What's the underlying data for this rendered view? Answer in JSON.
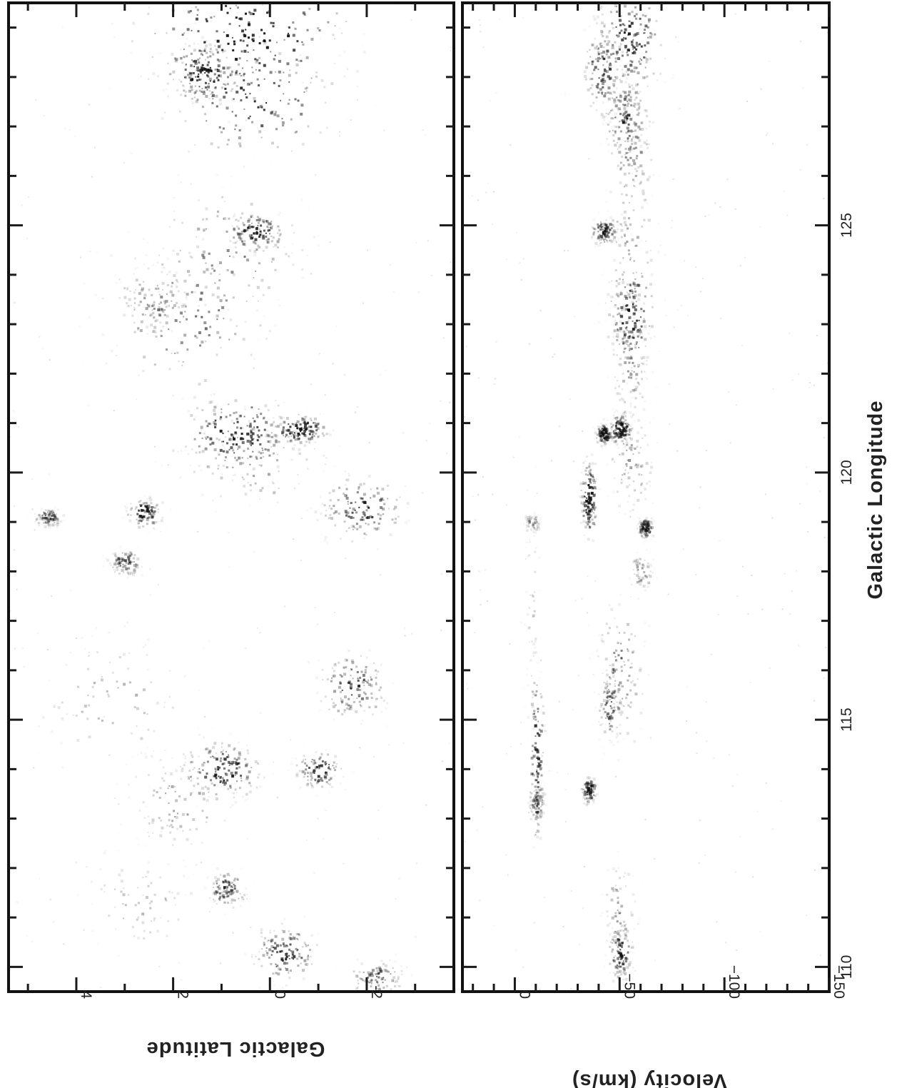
{
  "figure": {
    "rotation_deg": 90,
    "colormap": "greyscale-inverted",
    "ink_color": "#111111",
    "background_color": "#ffffff"
  },
  "chart_data": [
    {
      "type": "heatmap",
      "panel": "top",
      "xlabel": "Galactic Longitude",
      "ylabel": "Galactic Latitude",
      "xlim": [
        129.5,
        109.5
      ],
      "ylim": [
        -3.8,
        5.4
      ],
      "x_ticks": [
        125,
        120,
        115,
        110
      ],
      "x_ticklabels": [
        "125",
        "120",
        "115",
        "110"
      ],
      "x_minor_step": 1,
      "y_ticks": [
        -2,
        0,
        2,
        4
      ],
      "y_ticklabels": [
        "-2",
        "0",
        "2",
        "4"
      ],
      "y_minor_step": 1,
      "features": [
        {
          "l": 128.9,
          "b": 0.5,
          "sl": 0.7,
          "sb": 1.1,
          "strength": 1.0
        },
        {
          "l": 127.6,
          "b": 0.4,
          "sl": 0.6,
          "sb": 0.9,
          "strength": 0.85
        },
        {
          "l": 128.1,
          "b": 1.4,
          "sl": 0.3,
          "sb": 0.4,
          "strength": 0.9
        },
        {
          "l": 124.5,
          "b": 0.8,
          "sl": 0.7,
          "sb": 0.8,
          "strength": 0.5
        },
        {
          "l": 124.9,
          "b": 0.3,
          "sl": 0.2,
          "sb": 0.3,
          "strength": 0.8
        },
        {
          "l": 123.2,
          "b": 1.7,
          "sl": 0.8,
          "sb": 0.9,
          "strength": 0.55
        },
        {
          "l": 123.5,
          "b": 2.4,
          "sl": 0.4,
          "sb": 0.4,
          "strength": 0.4
        },
        {
          "l": 120.8,
          "b": 0.7,
          "sl": 0.4,
          "sb": 0.6,
          "strength": 0.85
        },
        {
          "l": 120.9,
          "b": -0.6,
          "sl": 0.15,
          "sb": 0.3,
          "strength": 1.0
        },
        {
          "l": 120.3,
          "b": 0.4,
          "sl": 0.5,
          "sb": 0.8,
          "strength": 0.4
        },
        {
          "l": 119.3,
          "b": -1.9,
          "sl": 0.35,
          "sb": 0.45,
          "strength": 0.7
        },
        {
          "l": 119.2,
          "b": 2.6,
          "sl": 0.15,
          "sb": 0.2,
          "strength": 0.8
        },
        {
          "l": 119.1,
          "b": 4.6,
          "sl": 0.1,
          "sb": 0.15,
          "strength": 0.6
        },
        {
          "l": 118.2,
          "b": 3.0,
          "sl": 0.15,
          "sb": 0.2,
          "strength": 0.55
        },
        {
          "l": 115.7,
          "b": -1.7,
          "sl": 0.35,
          "sb": 0.35,
          "strength": 0.7
        },
        {
          "l": 115.4,
          "b": 3.2,
          "sl": 0.7,
          "sb": 0.8,
          "strength": 0.3
        },
        {
          "l": 114.0,
          "b": 1.0,
          "sl": 0.3,
          "sb": 0.4,
          "strength": 0.85
        },
        {
          "l": 114.0,
          "b": -1.0,
          "sl": 0.2,
          "sb": 0.25,
          "strength": 0.75
        },
        {
          "l": 113.4,
          "b": 1.8,
          "sl": 0.5,
          "sb": 0.6,
          "strength": 0.4
        },
        {
          "l": 111.6,
          "b": 0.9,
          "sl": 0.2,
          "sb": 0.2,
          "strength": 0.7
        },
        {
          "l": 110.3,
          "b": -0.3,
          "sl": 0.3,
          "sb": 0.35,
          "strength": 0.75
        },
        {
          "l": 109.8,
          "b": -2.2,
          "sl": 0.2,
          "sb": 0.3,
          "strength": 0.55
        },
        {
          "l": 111.3,
          "b": 2.7,
          "sl": 0.6,
          "sb": 0.6,
          "strength": 0.25
        }
      ]
    },
    {
      "type": "heatmap",
      "panel": "bottom",
      "xlabel": "Galactic Longitude",
      "ylabel": "Velocity (km/s)",
      "xlim": [
        129.5,
        109.5
      ],
      "ylim": [
        -150,
        25
      ],
      "x_ticks": [
        125,
        120,
        115,
        110
      ],
      "x_ticklabels": [
        "125",
        "120",
        "115",
        "110"
      ],
      "x_minor_step": 1,
      "y_ticks": [
        -150,
        -100,
        -50,
        0
      ],
      "y_ticklabels": [
        "−150",
        "−100",
        "−50",
        "0"
      ],
      "y_minor_step": 10,
      "features": [
        {
          "l": 128.8,
          "v": -55,
          "sl": 0.6,
          "sv": 8,
          "strength": 0.8
        },
        {
          "l": 128.2,
          "v": -42,
          "sl": 0.5,
          "sv": 5,
          "strength": 0.7
        },
        {
          "l": 127.2,
          "v": -52,
          "sl": 0.4,
          "sv": 5,
          "strength": 0.75
        },
        {
          "l": 126.5,
          "v": -55,
          "sl": 0.8,
          "sv": 6,
          "strength": 0.4
        },
        {
          "l": 124.9,
          "v": -42,
          "sl": 0.15,
          "sv": 3,
          "strength": 0.8
        },
        {
          "l": 124.6,
          "v": -55,
          "sl": 1.0,
          "sv": 6,
          "strength": 0.35
        },
        {
          "l": 123.2,
          "v": -55,
          "sl": 0.6,
          "sv": 6,
          "strength": 0.8
        },
        {
          "l": 122.3,
          "v": -55,
          "sl": 0.8,
          "sv": 5,
          "strength": 0.35
        },
        {
          "l": 120.9,
          "v": -50,
          "sl": 0.15,
          "sv": 3,
          "strength": 1.0
        },
        {
          "l": 120.8,
          "v": -42,
          "sl": 0.12,
          "sv": 2,
          "strength": 0.95
        },
        {
          "l": 120.3,
          "v": -55,
          "sl": 0.6,
          "sv": 6,
          "strength": 0.35
        },
        {
          "l": 119.5,
          "v": -35,
          "sl": 0.4,
          "sv": 2,
          "strength": 1.0
        },
        {
          "l": 118.9,
          "v": -62,
          "sl": 0.1,
          "sv": 2,
          "strength": 0.85
        },
        {
          "l": 119.0,
          "v": -8,
          "sl": 0.1,
          "sv": 2,
          "strength": 0.35
        },
        {
          "l": 118.0,
          "v": -60,
          "sl": 0.2,
          "sv": 3,
          "strength": 0.35
        },
        {
          "l": 116.0,
          "v": -50,
          "sl": 0.8,
          "sv": 6,
          "strength": 0.45
        },
        {
          "l": 115.3,
          "v": -45,
          "sl": 0.4,
          "sv": 3,
          "strength": 0.6
        },
        {
          "l": 114.4,
          "v": -10,
          "sl": 1.0,
          "sv": 2,
          "strength": 0.7
        },
        {
          "l": 113.6,
          "v": -35,
          "sl": 0.15,
          "sv": 2,
          "strength": 0.7
        },
        {
          "l": 113.3,
          "v": -10,
          "sl": 0.2,
          "sv": 2,
          "strength": 0.55
        },
        {
          "l": 110.3,
          "v": -50,
          "sl": 0.3,
          "sv": 3,
          "strength": 0.75
        },
        {
          "l": 111.2,
          "v": -50,
          "sl": 0.5,
          "sv": 4,
          "strength": 0.35
        },
        {
          "l": 117.0,
          "v": -8,
          "sl": 1.5,
          "sv": 2,
          "strength": 0.15
        }
      ]
    }
  ]
}
